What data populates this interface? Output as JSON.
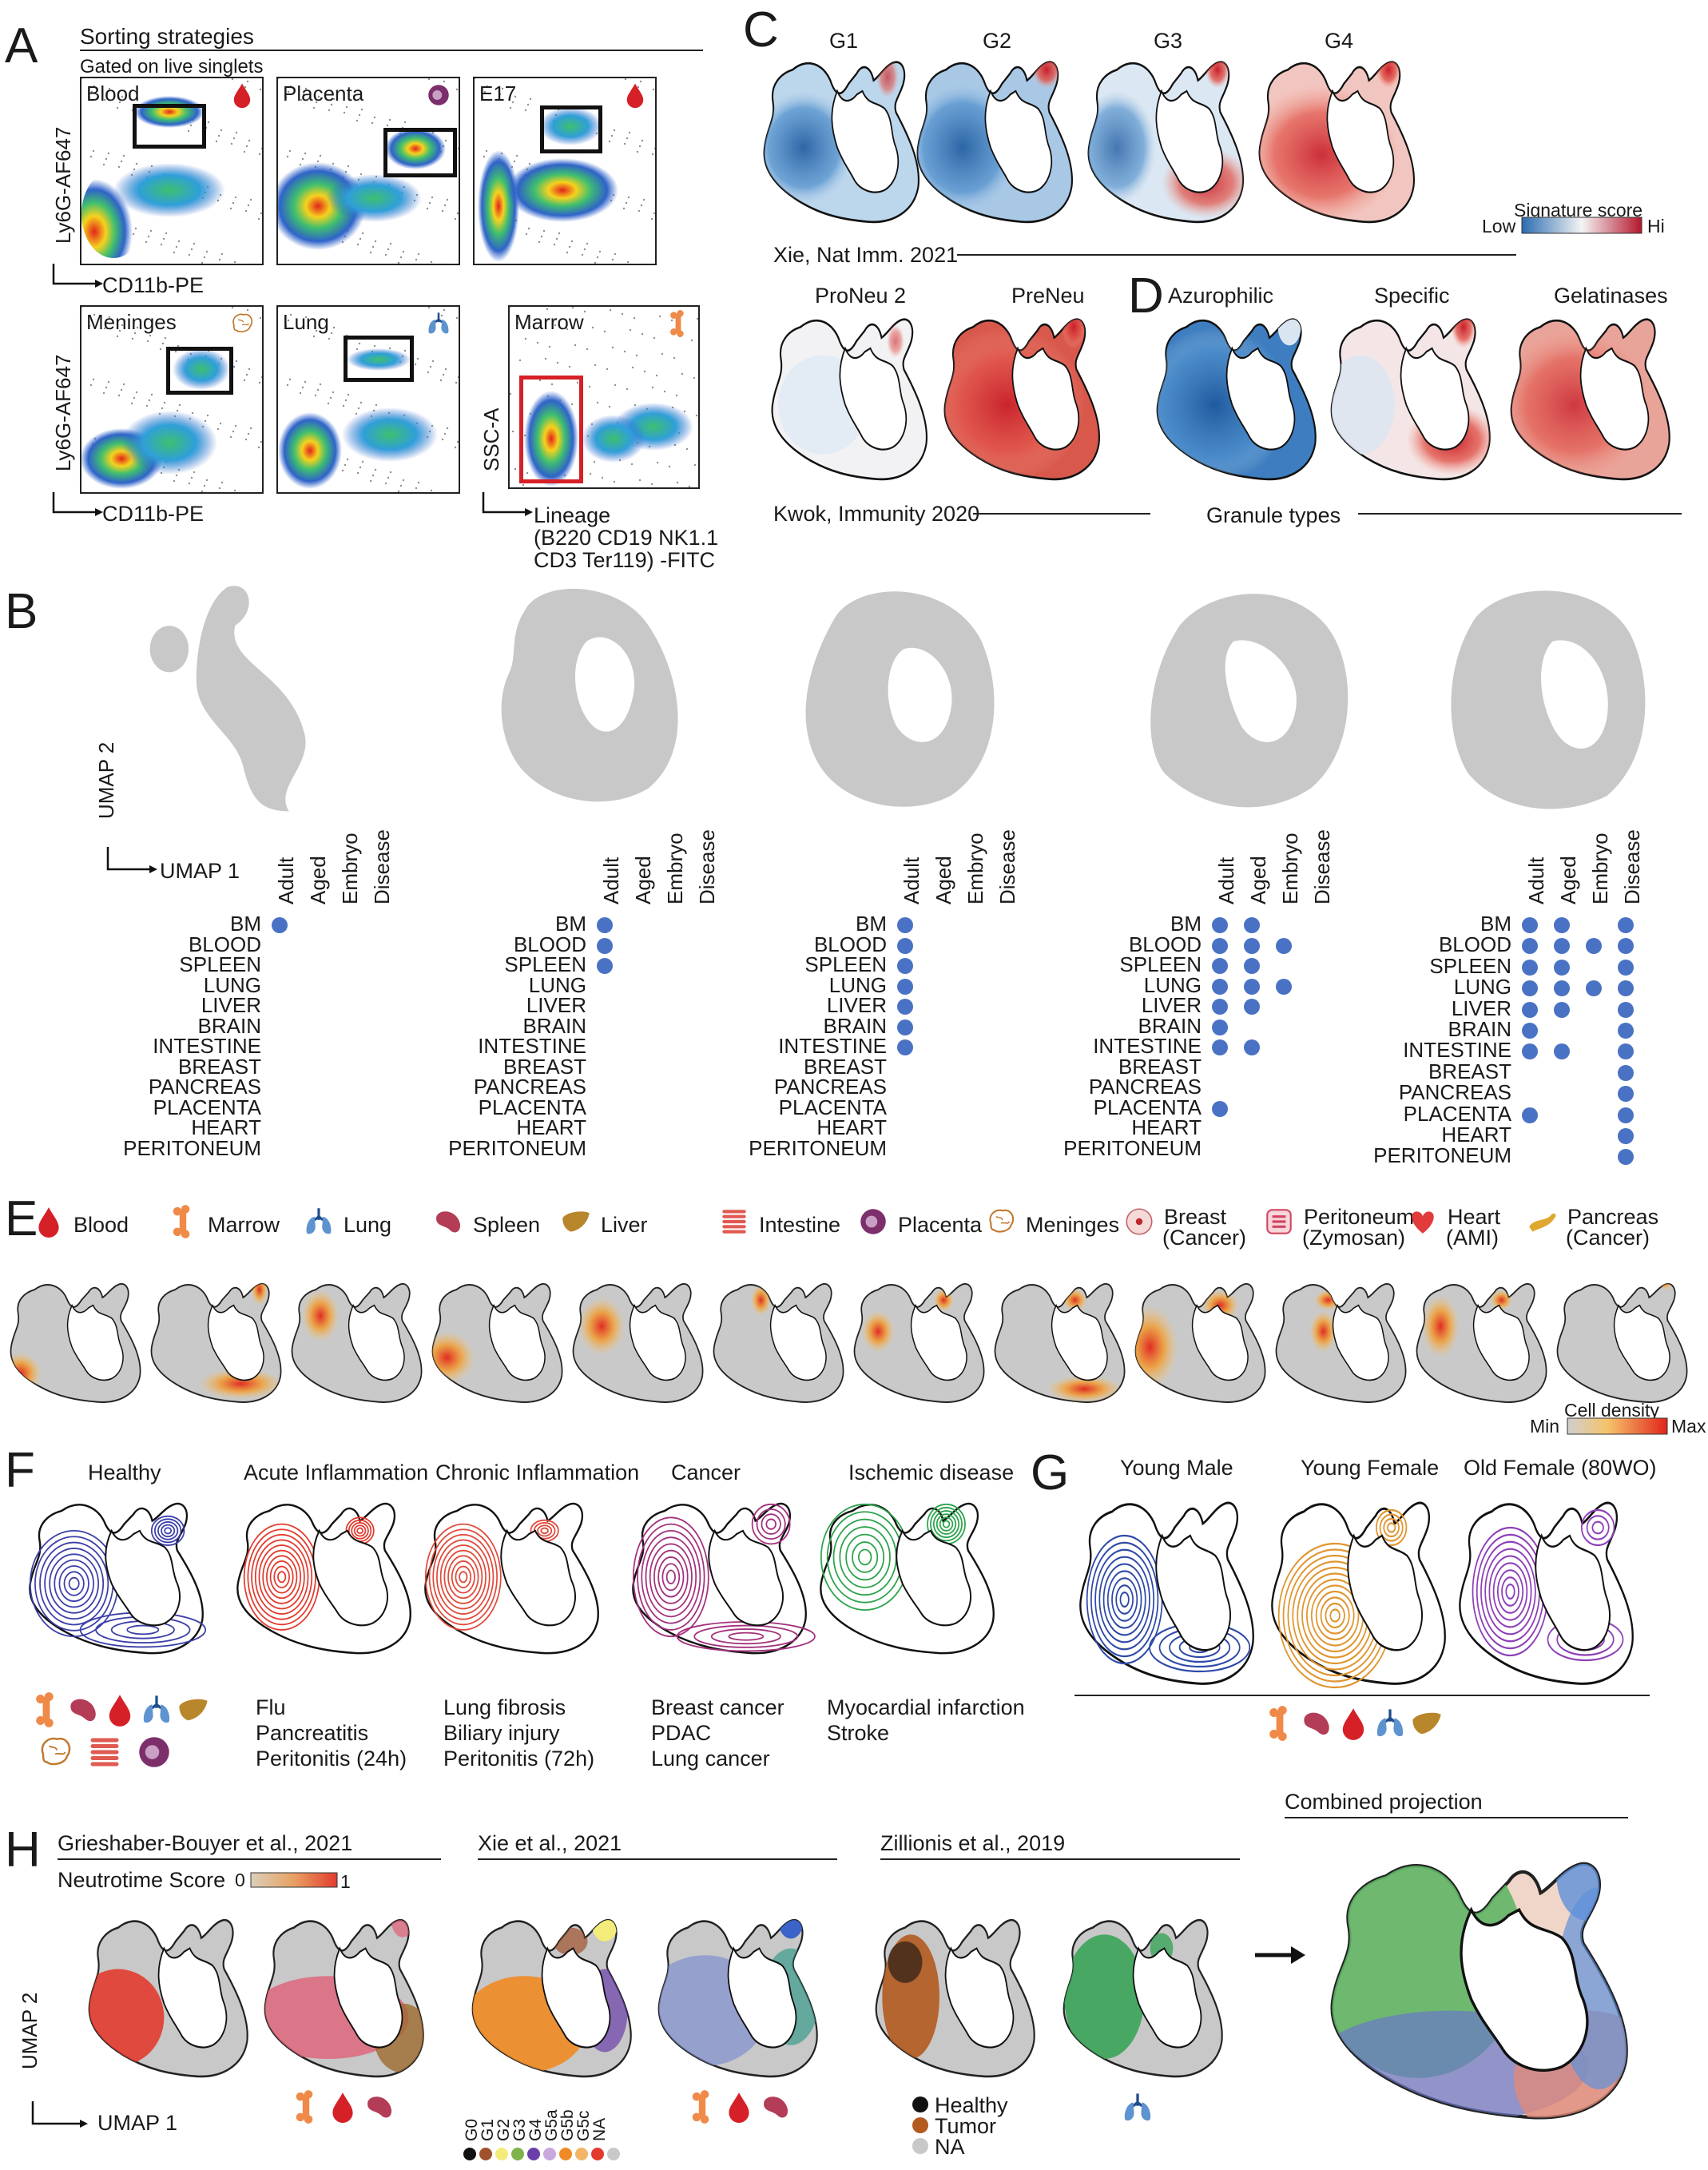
{
  "panelA": {
    "letter": "A",
    "title": "Sorting strategies",
    "subtitle": "Gated on live singlets",
    "plots": [
      {
        "name": "Blood"
      },
      {
        "name": "Placenta"
      },
      {
        "name": "E17"
      },
      {
        "name": "Meninges"
      },
      {
        "name": "Lung"
      },
      {
        "name": "Marrow"
      }
    ],
    "y_label": "Ly6G-AF647",
    "x_label": "CD11b-PE",
    "ssc_label": "SSC-A",
    "lineage_label_1": "Lineage",
    "lineage_label_2": "(B220 CD19 NK1.1",
    "lineage_label_3": "CD3 Ter119) -FITC"
  },
  "panelB": {
    "letter": "B",
    "umap2": "UMAP 2",
    "umap1": "UMAP 1",
    "columns": [
      "Adult",
      "Aged",
      "Embryo",
      "Disease"
    ],
    "tissues": [
      "BM",
      "BLOOD",
      "SPLEEN",
      "LUNG",
      "LIVER",
      "BRAIN",
      "INTESTINE",
      "BREAST",
      "PANCREAS",
      "PLACENTA",
      "HEART",
      "PERITONEUM"
    ],
    "grids": [
      [
        [
          1,
          0,
          0,
          0
        ],
        [
          0,
          0,
          0,
          0
        ],
        [
          0,
          0,
          0,
          0
        ],
        [
          0,
          0,
          0,
          0
        ],
        [
          0,
          0,
          0,
          0
        ],
        [
          0,
          0,
          0,
          0
        ],
        [
          0,
          0,
          0,
          0
        ],
        [
          0,
          0,
          0,
          0
        ],
        [
          0,
          0,
          0,
          0
        ],
        [
          0,
          0,
          0,
          0
        ],
        [
          0,
          0,
          0,
          0
        ],
        [
          0,
          0,
          0,
          0
        ]
      ],
      [
        [
          1,
          0,
          0,
          0
        ],
        [
          1,
          0,
          0,
          0
        ],
        [
          1,
          0,
          0,
          0
        ],
        [
          0,
          0,
          0,
          0
        ],
        [
          0,
          0,
          0,
          0
        ],
        [
          0,
          0,
          0,
          0
        ],
        [
          0,
          0,
          0,
          0
        ],
        [
          0,
          0,
          0,
          0
        ],
        [
          0,
          0,
          0,
          0
        ],
        [
          0,
          0,
          0,
          0
        ],
        [
          0,
          0,
          0,
          0
        ],
        [
          0,
          0,
          0,
          0
        ]
      ],
      [
        [
          1,
          0,
          0,
          0
        ],
        [
          1,
          0,
          0,
          0
        ],
        [
          1,
          0,
          0,
          0
        ],
        [
          1,
          0,
          0,
          0
        ],
        [
          1,
          0,
          0,
          0
        ],
        [
          1,
          0,
          0,
          0
        ],
        [
          1,
          0,
          0,
          0
        ],
        [
          0,
          0,
          0,
          0
        ],
        [
          0,
          0,
          0,
          0
        ],
        [
          0,
          0,
          0,
          0
        ],
        [
          0,
          0,
          0,
          0
        ],
        [
          0,
          0,
          0,
          0
        ]
      ],
      [
        [
          1,
          1,
          0,
          0
        ],
        [
          1,
          1,
          1,
          0
        ],
        [
          1,
          1,
          0,
          0
        ],
        [
          1,
          1,
          1,
          0
        ],
        [
          1,
          1,
          0,
          0
        ],
        [
          1,
          0,
          0,
          0
        ],
        [
          1,
          1,
          0,
          0
        ],
        [
          0,
          0,
          0,
          0
        ],
        [
          0,
          0,
          0,
          0
        ],
        [
          1,
          0,
          0,
          0
        ],
        [
          0,
          0,
          0,
          0
        ],
        [
          0,
          0,
          0,
          0
        ]
      ],
      [
        [
          1,
          1,
          0,
          1
        ],
        [
          1,
          1,
          1,
          1
        ],
        [
          1,
          1,
          0,
          1
        ],
        [
          1,
          1,
          1,
          1
        ],
        [
          1,
          1,
          0,
          1
        ],
        [
          1,
          0,
          0,
          1
        ],
        [
          1,
          1,
          0,
          1
        ],
        [
          0,
          0,
          0,
          1
        ],
        [
          0,
          0,
          0,
          1
        ],
        [
          1,
          0,
          0,
          1
        ],
        [
          0,
          0,
          0,
          1
        ],
        [
          0,
          0,
          0,
          1
        ]
      ]
    ]
  },
  "panelC": {
    "letter": "C",
    "maps": [
      "G1",
      "G2",
      "G3",
      "G4"
    ],
    "legend_title": "Signature score",
    "legend_low": "Low",
    "legend_hi": "Hi",
    "source1": "Xie, Nat Imm. 2021",
    "maps2": [
      "ProNeu 2",
      "PreNeu"
    ],
    "source2": "Kwok, Immunity 2020"
  },
  "panelD": {
    "letter": "D",
    "maps": [
      "Azurophilic",
      "Specific",
      "Gelatinases"
    ],
    "caption": "Granule types"
  },
  "panelE": {
    "letter": "E",
    "tissues": [
      {
        "label": "Blood",
        "icon": "blood-drop-icon"
      },
      {
        "label": "Marrow",
        "icon": "bone-icon"
      },
      {
        "label": "Lung",
        "icon": "lung-icon"
      },
      {
        "label": "Spleen",
        "icon": "spleen-icon"
      },
      {
        "label": "Liver",
        "icon": "liver-icon"
      },
      {
        "label": "Intestine",
        "icon": "intestine-icon"
      },
      {
        "label": "Placenta",
        "icon": "placenta-icon"
      },
      {
        "label": "Meninges",
        "icon": "brain-icon"
      },
      {
        "label": "Breast",
        "label2": "(Cancer)",
        "icon": "breast-icon"
      },
      {
        "label": "Peritoneum",
        "label2": "(Zymosan)",
        "icon": "peritoneum-icon"
      },
      {
        "label": "Heart",
        "label2": "(AMI)",
        "icon": "heart-icon"
      },
      {
        "label": "Pancreas",
        "label2": "(Cancer)",
        "icon": "pancreas-icon"
      }
    ],
    "legend_title": "Cell density",
    "legend_min": "Min",
    "legend_max": "Max"
  },
  "panelF": {
    "letter": "F",
    "groups": [
      {
        "title": "Healthy",
        "color": "#3b3fa8",
        "items": []
      },
      {
        "title": "Acute Inflammation",
        "color": "#e23b2e",
        "items": [
          "Flu",
          "Pancreatitis",
          "Peritonitis (24h)"
        ]
      },
      {
        "title": "Chronic Inflammation",
        "color": "#e04a3a",
        "items": [
          "Lung fibrosis",
          "Biliary injury",
          "Peritonitis (72h)"
        ]
      },
      {
        "title": "Cancer",
        "color": "#a3307c",
        "items": [
          "Breast cancer",
          "PDAC",
          "Lung cancer"
        ]
      },
      {
        "title": "Ischemic disease",
        "color": "#2aa34a",
        "items": [
          "Myocardial infarction",
          "Stroke"
        ]
      }
    ]
  },
  "panelG": {
    "letter": "G",
    "groups": [
      {
        "title": "Young Male",
        "color": "#2e49a8"
      },
      {
        "title": "Young Female",
        "color": "#e0952e"
      },
      {
        "title": "Old Female (80WO)",
        "color": "#8e3fb8"
      }
    ]
  },
  "panelH": {
    "letter": "H",
    "source1": "Grieshaber-Bouyer et al., 2021",
    "source2": "Xie et al., 2021",
    "source3": "Zillionis et al., 2019",
    "source4": "Combined projection",
    "score_label": "Neutrotime Score",
    "score_min": "0",
    "score_max": "1",
    "clusters": [
      {
        "label": "G0",
        "color": "#111111"
      },
      {
        "label": "G1",
        "color": "#a0522d"
      },
      {
        "label": "G2",
        "color": "#f3ec7a"
      },
      {
        "label": "G3",
        "color": "#7fb24a"
      },
      {
        "label": "G4",
        "color": "#6a3fa8"
      },
      {
        "label": "G5a",
        "color": "#c9a8dd"
      },
      {
        "label": "G5b",
        "color": "#f08a24"
      },
      {
        "label": "G5c",
        "color": "#f3b566"
      },
      {
        "label": "NA",
        "color": "#e23b2e"
      },
      {
        "label": "",
        "color": "#c8c8c8"
      }
    ],
    "zil_legend": [
      {
        "label": "Healthy",
        "color": "#111111"
      },
      {
        "label": "Tumor",
        "color": "#b35a1f"
      },
      {
        "label": "NA",
        "color": "#c8c8c8"
      }
    ],
    "umap2": "UMAP 2",
    "umap1": "UMAP 1"
  }
}
